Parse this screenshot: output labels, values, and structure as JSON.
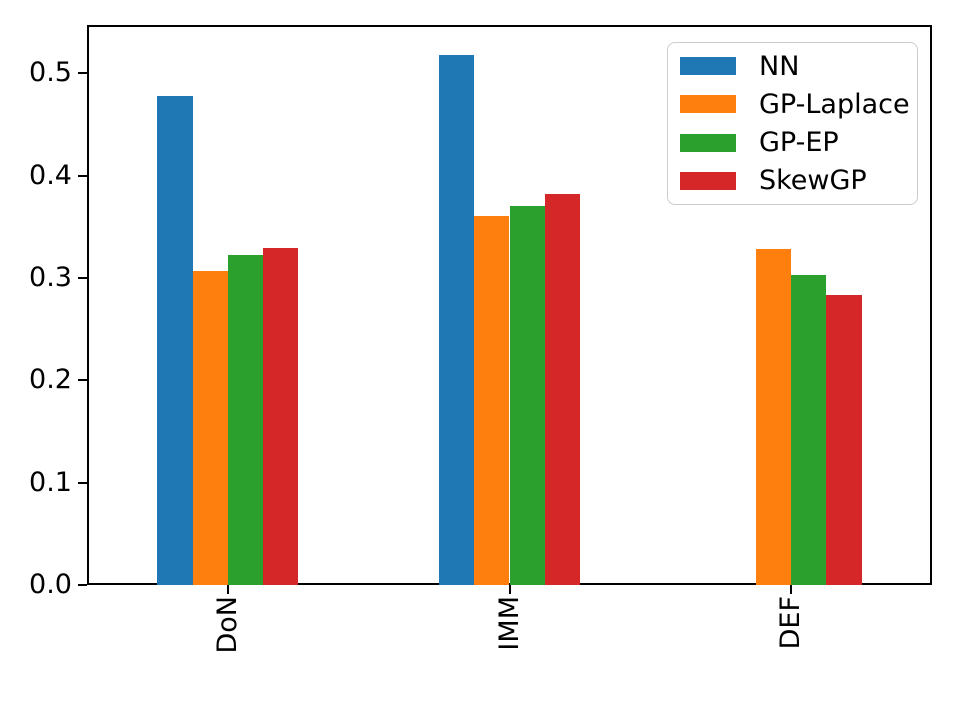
{
  "figure": {
    "background_color": "#ffffff",
    "axis_color": "#000000"
  },
  "chart_data": {
    "type": "bar",
    "title": "",
    "xlabel": "",
    "ylabel": "",
    "categories": [
      "DoN",
      "IMM",
      "DEF"
    ],
    "series": [
      {
        "name": "NN",
        "color": "#1f77b4",
        "values": [
          0.478,
          0.518,
          0
        ]
      },
      {
        "name": "GP-Laplace",
        "color": "#ff7f0e",
        "values": [
          0.307,
          0.36,
          0.328
        ]
      },
      {
        "name": "GP-EP",
        "color": "#2ca02c",
        "values": [
          0.322,
          0.37,
          0.303
        ]
      },
      {
        "name": "SkewGP",
        "color": "#d62728",
        "values": [
          0.329,
          0.382,
          0.283
        ]
      }
    ],
    "ylim": [
      0,
      0.547
    ],
    "yticks": [
      0.0,
      0.1,
      0.2,
      0.3,
      0.4,
      0.5
    ],
    "ytick_labels": [
      "0.0",
      "0.1",
      "0.2",
      "0.3",
      "0.4",
      "0.5"
    ],
    "xtick_rotation": 90,
    "grid": false,
    "legend_position": "upper right",
    "legend_entries": [
      "NN",
      "GP-Laplace",
      "GP-EP",
      "SkewGP"
    ]
  }
}
